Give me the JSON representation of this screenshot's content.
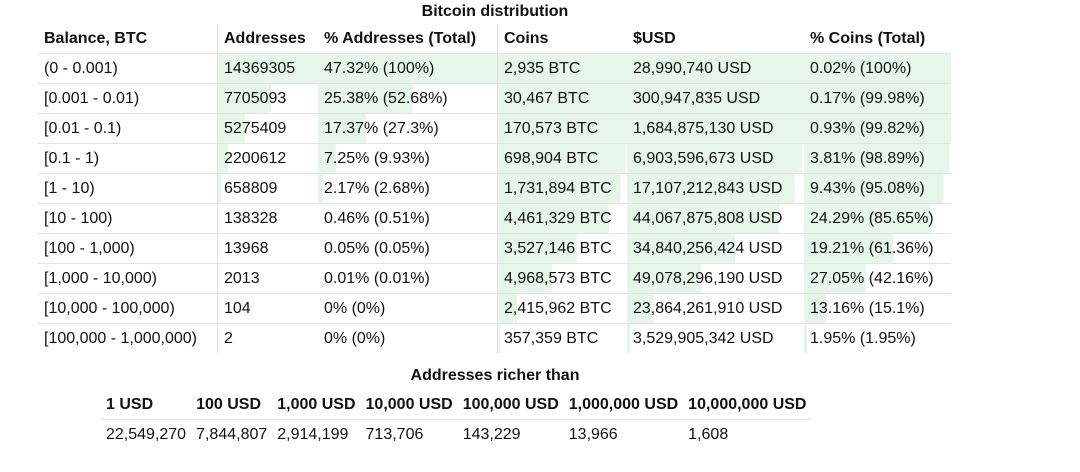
{
  "distribution": {
    "title": "Bitcoin distribution",
    "headers": [
      "Balance, BTC",
      "Addresses",
      "% Addresses (Total)",
      "Coins",
      "$USD",
      "% Coins (Total)"
    ],
    "rows": [
      {
        "balance": "(0 - 0.001)",
        "addresses": "14369305",
        "pct_addr": "47.32% (100%)",
        "coins": "2,935 BTC",
        "usd": "28,990,740 USD",
        "pct_coins": "0.02% (100%)",
        "bar_addr": 1.0,
        "bar_coins": 1.0
      },
      {
        "balance": "[0.001 - 0.01)",
        "addresses": "7705093",
        "pct_addr": "25.38% (52.68%)",
        "coins": "30,467 BTC",
        "usd": "300,947,835 USD",
        "pct_coins": "0.17% (99.98%)",
        "bar_addr": 0.53,
        "bar_coins": 1.0
      },
      {
        "balance": "[0.01 - 0.1)",
        "addresses": "5275409",
        "pct_addr": "17.37% (27.3%)",
        "coins": "170,573 BTC",
        "usd": "1,684,875,130 USD",
        "pct_coins": "0.93% (99.82%)",
        "bar_addr": 0.27,
        "bar_coins": 1.0
      },
      {
        "balance": "[0.1 - 1)",
        "addresses": "2200612",
        "pct_addr": "7.25% (9.93%)",
        "coins": "698,904 BTC",
        "usd": "6,903,596,673 USD",
        "pct_coins": "3.81% (98.89%)",
        "bar_addr": 0.1,
        "bar_coins": 0.99
      },
      {
        "balance": "[1 - 10)",
        "addresses": "658809",
        "pct_addr": "2.17% (2.68%)",
        "coins": "1,731,894 BTC",
        "usd": "17,107,212,843 USD",
        "pct_coins": "9.43% (95.08%)",
        "bar_addr": 0.03,
        "bar_coins": 0.95
      },
      {
        "balance": "[10 - 100)",
        "addresses": "138328",
        "pct_addr": "0.46% (0.51%)",
        "coins": "4,461,329 BTC",
        "usd": "44,067,875,808 USD",
        "pct_coins": "24.29% (85.65%)",
        "bar_addr": 0.0,
        "bar_coins": 0.86
      },
      {
        "balance": "[100 - 1,000)",
        "addresses": "13968",
        "pct_addr": "0.05% (0.05%)",
        "coins": "3,527,146 BTC",
        "usd": "34,840,256,424 USD",
        "pct_coins": "19.21% (61.36%)",
        "bar_addr": 0.0,
        "bar_coins": 0.61
      },
      {
        "balance": "[1,000 - 10,000)",
        "addresses": "2013",
        "pct_addr": "0.01% (0.01%)",
        "coins": "4,968,573 BTC",
        "usd": "49,078,296,190 USD",
        "pct_coins": "27.05% (42.16%)",
        "bar_addr": 0.0,
        "bar_coins": 0.42
      },
      {
        "balance": "[10,000 - 100,000)",
        "addresses": "104",
        "pct_addr": "0% (0%)",
        "coins": "2,415,962 BTC",
        "usd": "23,864,261,910 USD",
        "pct_coins": "13.16% (15.1%)",
        "bar_addr": 0.0,
        "bar_coins": 0.15
      },
      {
        "balance": "[100,000 - 1,000,000)",
        "addresses": "2",
        "pct_addr": "0% (0%)",
        "coins": "357,359 BTC",
        "usd": "3,529,905,342 USD",
        "pct_coins": "1.95% (1.95%)",
        "bar_addr": 0.0,
        "bar_coins": 0.02
      }
    ]
  },
  "richer": {
    "title": "Addresses richer than",
    "headers": [
      "1 USD",
      "100 USD",
      "1,000 USD",
      "10,000 USD",
      "100,000 USD",
      "1,000,000 USD",
      "10,000,000 USD"
    ],
    "values": [
      "22,549,270",
      "7,844,807",
      "2,914,199",
      "713,706",
      "143,229",
      "13,966",
      "1,608"
    ]
  },
  "colors": {
    "bar": "#e7f6ea",
    "border": "#e3e3e3"
  }
}
